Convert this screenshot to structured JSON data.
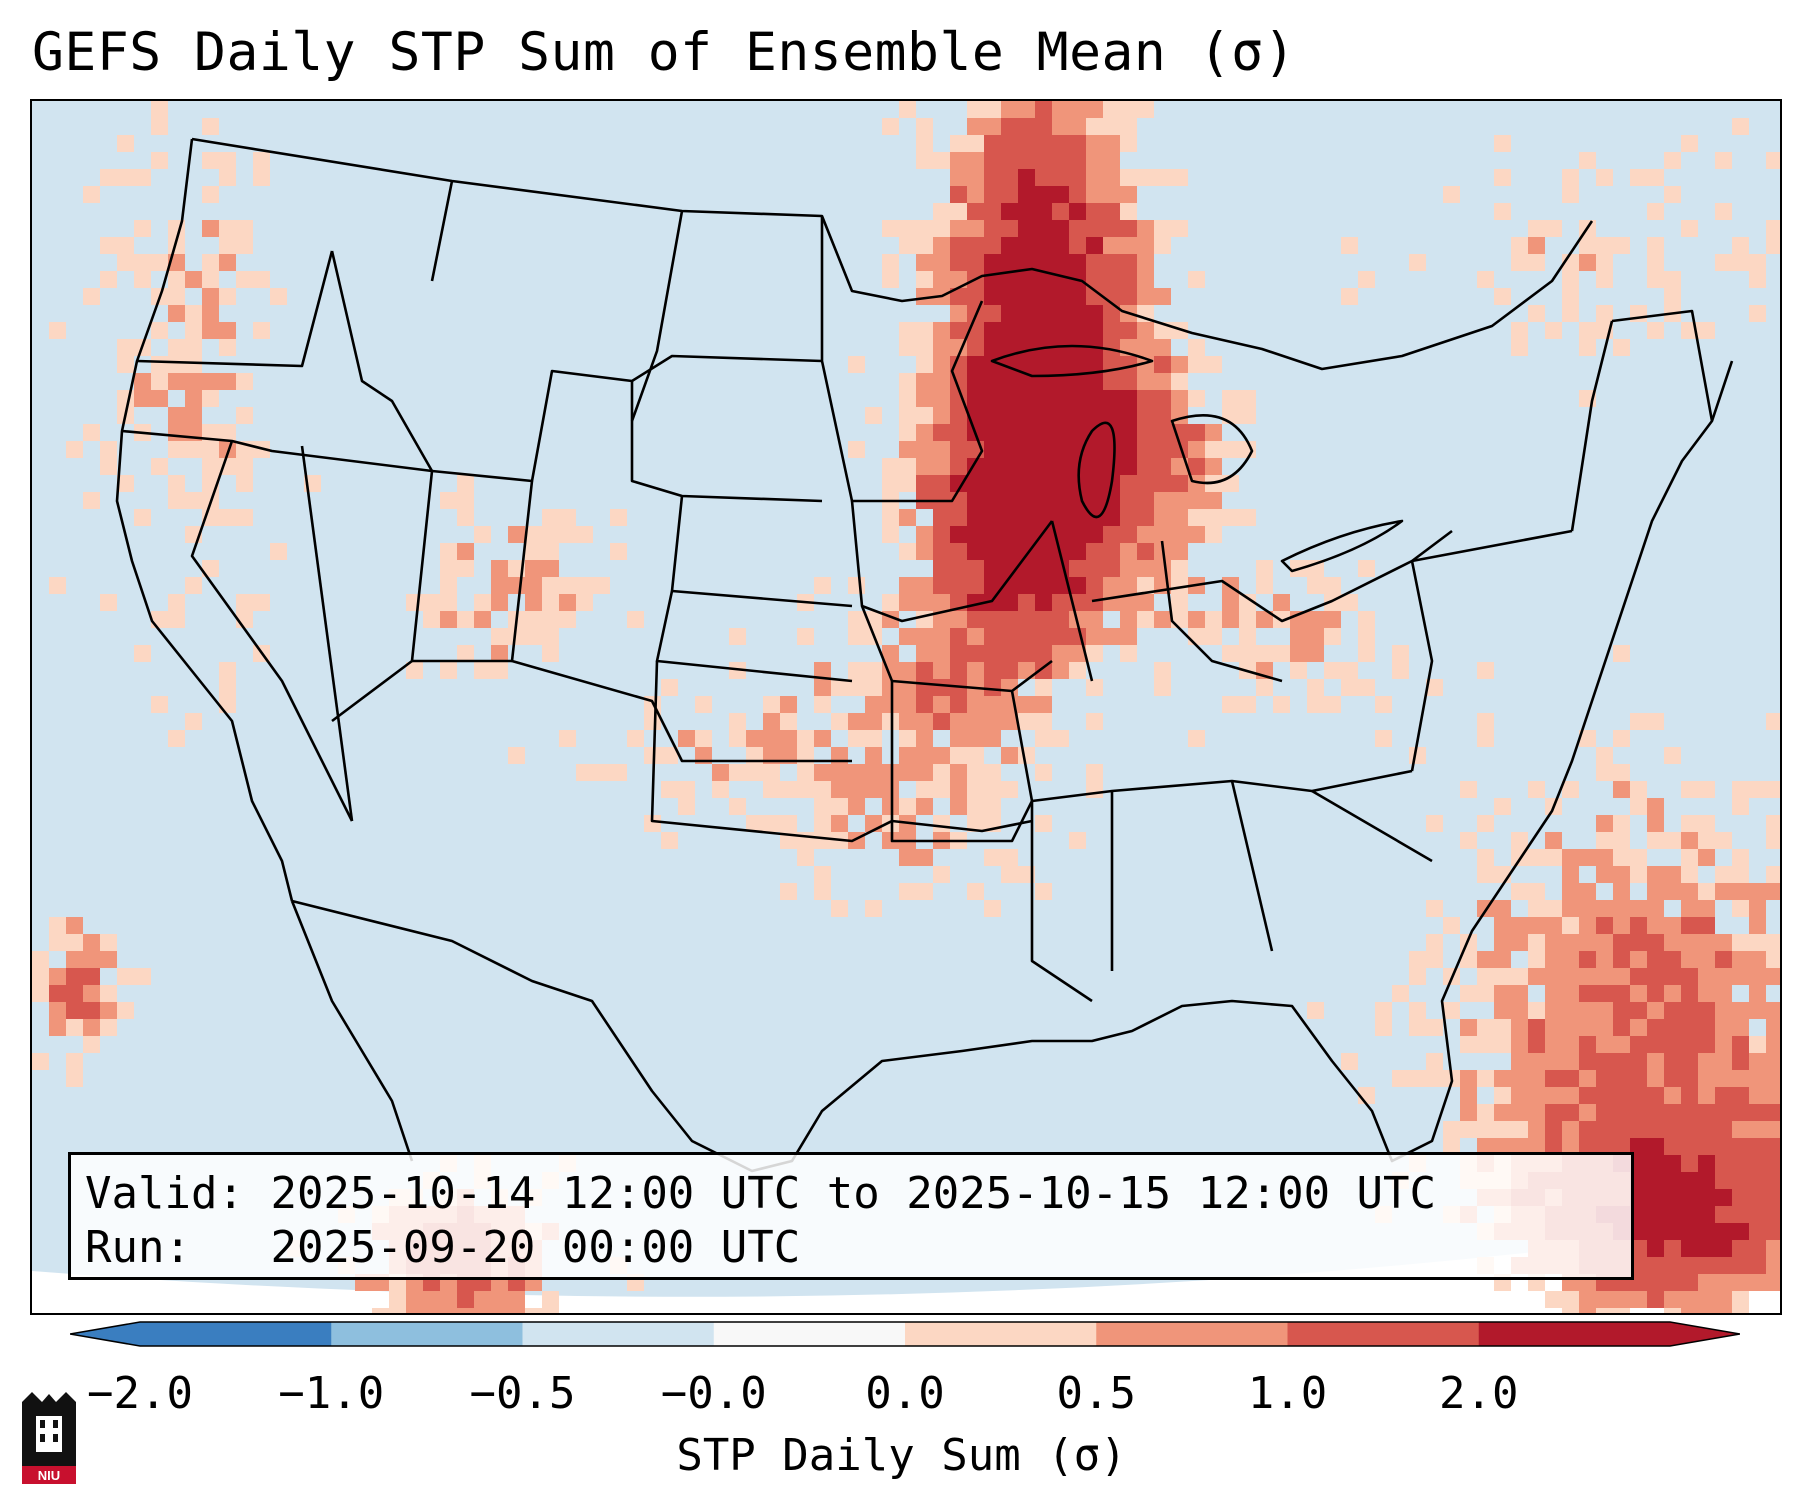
{
  "title": "GEFS Daily STP Sum of Ensemble Mean (σ)",
  "info": {
    "valid_label": "Valid:",
    "valid_value": "2025-10-14 12:00 UTC to 2025-10-15 12:00 UTC",
    "run_label": "Run:",
    "run_value": "2025-09-20 00:00 UTC"
  },
  "colorbar": {
    "label": "STP Daily Sum (σ)",
    "ticks": [
      "−2.0",
      "−1.0",
      "−0.5",
      "−0.0",
      "0.0",
      "0.5",
      "1.0",
      "2.0"
    ],
    "bin_colors": [
      "#3a7ec0",
      "#8ebfde",
      "#d1e4f0",
      "#f8f8f8",
      "#fcd7c3",
      "#f0957a",
      "#d7574e",
      "#b2192b"
    ],
    "over_color": "#b2192b",
    "under_color": "#3a7ec0"
  },
  "map": {
    "background_color": "#d1e4f0",
    "boundary_color": "#000000"
  },
  "logo": {
    "text": "NIU"
  }
}
